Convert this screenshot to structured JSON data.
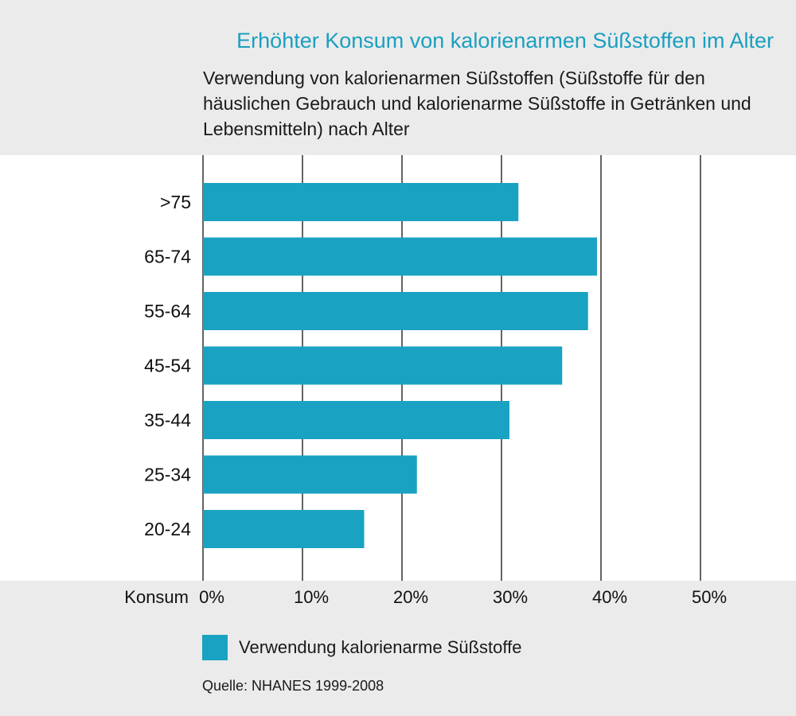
{
  "header": {
    "title": "Erhöhter Konsum von kalorienarmen Süßstoffen im Alter",
    "subtitle": "Verwendung von kalorienarmen Süßstoffen (Süßstoffe für den häuslichen Gebrauch und kalorienarme Süßstoffe in Getränken und Lebensmitteln) nach Alter"
  },
  "legend": {
    "label": "Verwendung kalorienarme Süßstoffe"
  },
  "source": "Quelle: NHANES 1999-2008",
  "colors": {
    "bar": "#19a2c2",
    "title": "#1a9fc1",
    "gridline": "#111111"
  },
  "chart_data": {
    "type": "bar",
    "orientation": "horizontal",
    "categories": [
      ">75",
      "65-74",
      "55-64",
      "45-54",
      "35-44",
      "25-34",
      "20-24"
    ],
    "series": [
      {
        "name": "Verwendung kalorienarme Süßstoffe",
        "values": [
          31.7,
          39.6,
          38.7,
          36.1,
          30.8,
          21.5,
          16.2
        ]
      }
    ],
    "xlabel": "Konsum",
    "xticks": [
      "0%",
      "10%",
      "20%",
      "30%",
      "40%",
      "50%"
    ],
    "xlim": [
      0,
      50
    ],
    "grid": true,
    "legend_position": "bottom"
  }
}
